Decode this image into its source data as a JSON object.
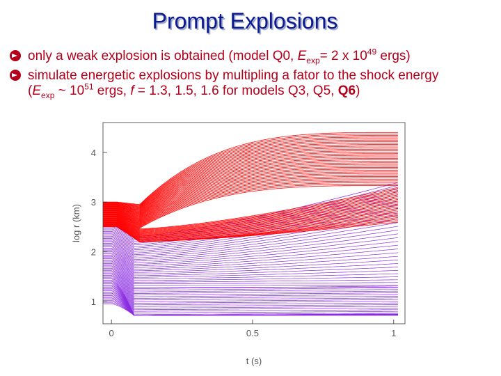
{
  "title": "Prompt Explosions",
  "bullets": [
    {
      "pre": "only a weak explosion is obtained (model Q0, ",
      "e_var": "E",
      "e_sub": "exp",
      "mid": "= 2 x 10",
      "exp": "49",
      "post": " ergs)"
    },
    {
      "line1": "simulate energetic explosions by multipling a fator to the shock energy",
      "open": "(",
      "e_var": "E",
      "e_sub": "exp",
      "mid": " ~ 10",
      "exp": "51",
      "mid2": " ergs, ",
      "f_var": "f",
      "mid3": " = 1.3, 1.5, 1.6 for models Q3, Q5, ",
      "bold": "Q6",
      "close": ")"
    }
  ],
  "colors": {
    "title": "#0b1a8f",
    "text": "#b3001b",
    "red_series": "#ff0000",
    "purple_series": "#8a2be2"
  },
  "chart_data": {
    "type": "line",
    "xlabel": "t (s)",
    "ylabel": "log r (km)",
    "xlim": [
      -0.03,
      1.04
    ],
    "ylim": [
      0.55,
      4.6
    ],
    "x_ticks": [
      "0",
      "0.5",
      "1"
    ],
    "x_tick_values": [
      0,
      0.5,
      1
    ],
    "y_ticks": [
      "1",
      "2",
      "3",
      "4"
    ],
    "y_tick_values": [
      1,
      2,
      3,
      4
    ],
    "grid": false,
    "series": [
      {
        "values_description": null
      }
    ],
    "red_groups": {
      "count": 60,
      "start_band": [
        2.5,
        3.0
      ],
      "collapse_time": 0.1,
      "collapse_min": 2.2,
      "end_band": [
        2.6,
        4.4
      ]
    },
    "purple_groups": {
      "count": 70,
      "start_band": [
        0.95,
        2.6
      ],
      "bounce_time": 0.08,
      "end_band": [
        0.7,
        3.4
      ]
    }
  }
}
